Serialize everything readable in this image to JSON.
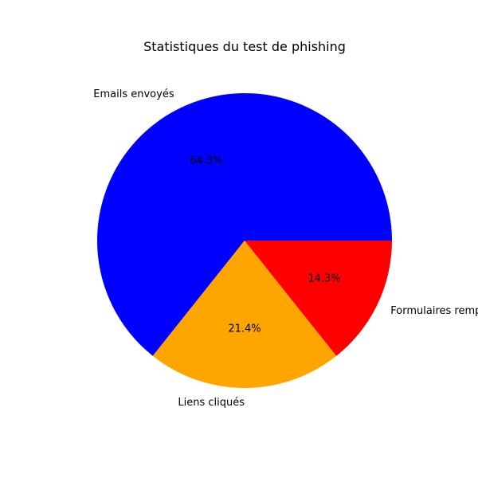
{
  "chart_data": {
    "type": "pie",
    "title": "Statistiques du test de phishing",
    "categories": [
      "Emails envoyés",
      "Liens cliqués",
      "Formulaires remplis"
    ],
    "values": [
      64.3,
      21.4,
      14.3
    ],
    "percent_labels": [
      "64.3%",
      "21.4%",
      "14.3%"
    ],
    "colors": [
      "#0000ff",
      "#ffa500",
      "#ff0000"
    ],
    "start_angle_deg": 0,
    "direction": "counterclockwise"
  }
}
